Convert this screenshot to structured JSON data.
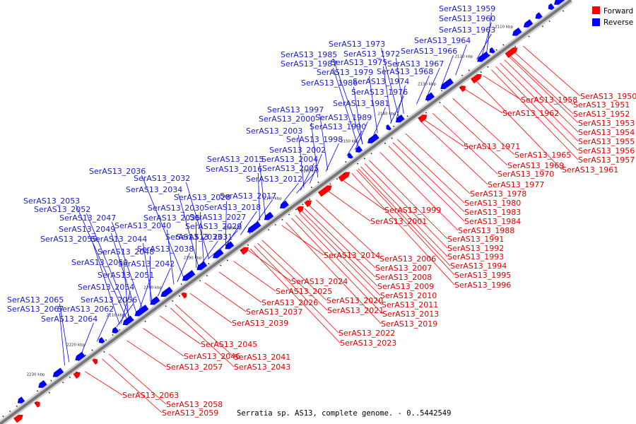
{
  "caption": "Serratia sp. AS13, complete genome. - 0..5442549",
  "legend": [
    {
      "label": "Forward",
      "color": "#ff0000"
    },
    {
      "label": "Reverse",
      "color": "#0000ff"
    }
  ],
  "colors": {
    "forward": "#ff0000",
    "reverse": "#0000ff",
    "forward_line": "#ff0000",
    "reverse_line": "#0000ff",
    "backbone": "#777777"
  },
  "ticks": [
    "2100 kbp",
    "2110 kbp",
    "2120 kbp",
    "2130 kbp",
    "2140 kbp",
    "2150 kbp",
    "2160 kbp",
    "2170 kbp",
    "2180 kbp",
    "2190 kbp",
    "2200 kbp",
    "2210 kbp",
    "2220 kbp",
    "2230 kbp"
  ],
  "forward_genes": [
    "SerAS13_1950",
    "SerAS13_1951",
    "SerAS13_1952",
    "SerAS13_1953",
    "SerAS13_1954",
    "SerAS13_1955",
    "SerAS13_1956",
    "SerAS13_1957",
    "SerAS13_1958",
    "SerAS13_1961",
    "SerAS13_1962",
    "SerAS13_1965",
    "SerAS13_1969",
    "SerAS13_1970",
    "SerAS13_1971",
    "SerAS13_1977",
    "SerAS13_1978",
    "SerAS13_1980",
    "SerAS13_1983",
    "SerAS13_1984",
    "SerAS13_1988",
    "SerAS13_1991",
    "SerAS13_1992",
    "SerAS13_1993",
    "SerAS13_1994",
    "SerAS13_1995",
    "SerAS13_1996",
    "SerAS13_1999",
    "SerAS13_2001",
    "SerAS13_2006",
    "SerAS13_2007",
    "SerAS13_2008",
    "SerAS13_2009",
    "SerAS13_2010",
    "SerAS13_2011",
    "SerAS13_2013",
    "SerAS13_2014",
    "SerAS13_2019",
    "SerAS13_2020",
    "SerAS13_2021",
    "SerAS13_2022",
    "SerAS13_2023",
    "SerAS13_2024",
    "SerAS13_2025",
    "SerAS13_2026",
    "SerAS13_2037",
    "SerAS13_2039",
    "SerAS13_2041",
    "SerAS13_2043",
    "SerAS13_2045",
    "SerAS13_2046",
    "SerAS13_2057",
    "SerAS13_2058",
    "SerAS13_2059",
    "SerAS13_2063"
  ],
  "reverse_genes": [
    "SerAS13_1959",
    "SerAS13_1960",
    "SerAS13_1963",
    "SerAS13_1964",
    "SerAS13_1966",
    "SerAS13_1967",
    "SerAS13_1968",
    "SerAS13_1972",
    "SerAS13_1973",
    "SerAS13_1974",
    "SerAS13_1975",
    "SerAS13_1976",
    "SerAS13_1979",
    "SerAS13_1981",
    "SerAS13_1985",
    "SerAS13_1986",
    "SerAS13_1987",
    "SerAS13_1989",
    "SerAS13_1990",
    "SerAS13_1997",
    "SerAS13_1998",
    "SerAS13_2000",
    "SerAS13_2002",
    "SerAS13_2003",
    "SerAS13_2004",
    "SerAS13_2005",
    "SerAS13_2012",
    "SerAS13_2015",
    "SerAS13_2016",
    "SerAS13_2017",
    "SerAS13_2018",
    "SerAS13_2027",
    "SerAS13_2028",
    "SerAS13_2029",
    "SerAS13_2030",
    "SerAS13_2031",
    "SerAS13_2032",
    "SerAS13_2033",
    "SerAS13_2034",
    "SerAS13_2035",
    "SerAS13_2036",
    "SerAS13_2038",
    "SerAS13_2040",
    "SerAS13_2042",
    "SerAS13_2044",
    "SerAS13_2047",
    "SerAS13_2048",
    "SerAS13_2049",
    "SerAS13_2050",
    "SerAS13_2051",
    "SerAS13_2052",
    "SerAS13_2053",
    "SerAS13_2054",
    "SerAS13_2055",
    "SerAS13_2056",
    "SerAS13_2062",
    "SerAS13_2064",
    "SerAS13_2065",
    "SerAS13_2067"
  ]
}
